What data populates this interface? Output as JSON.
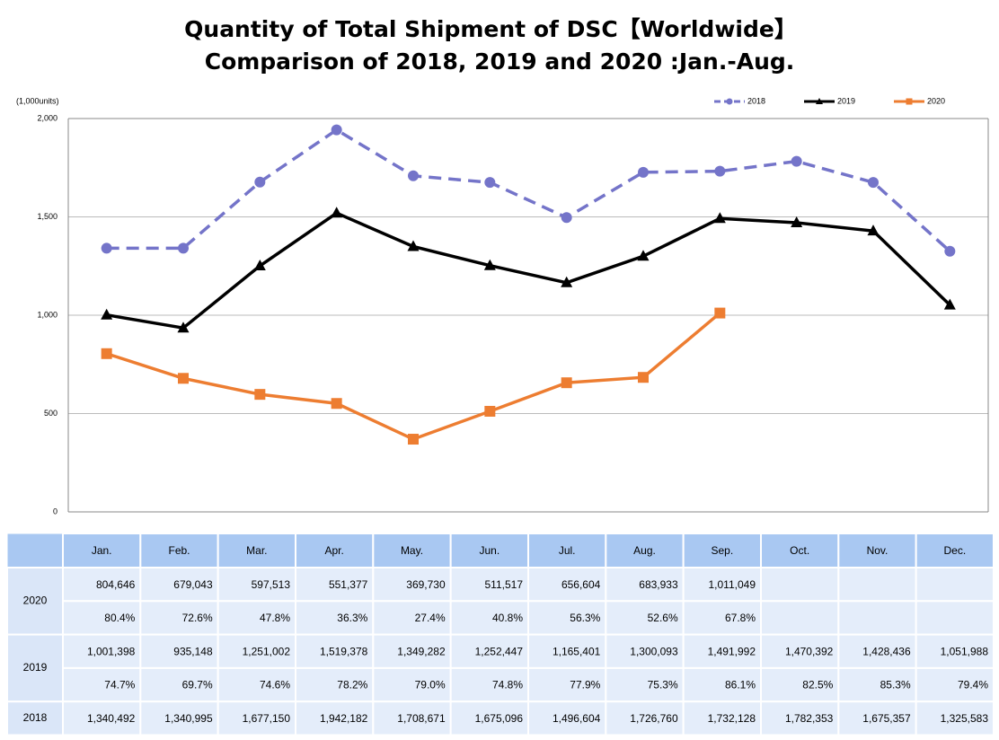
{
  "chart_data": {
    "type": "line",
    "title": "Quantity of Total Shipment of DSC【Worldwide】",
    "subtitle": "Comparison of 2018, 2019 and 2020 :Jan.-Aug.",
    "y_label": "(1,000units)",
    "categories": [
      "Jan.",
      "Feb.",
      "Mar.",
      "Apr.",
      "May.",
      "Jun.",
      "Jul.",
      "Aug.",
      "Sep.",
      "Oct.",
      "Nov.",
      "Dec."
    ],
    "ylim": [
      0,
      2000
    ],
    "yticks": [
      0,
      500,
      {
        "value": 1000,
        "label": "1,000"
      },
      {
        "value": 1500,
        "label": "1,500"
      },
      {
        "value": 2000,
        "label": "2,000"
      }
    ],
    "grid": true,
    "legend": "top-right",
    "series": [
      {
        "name": "2018",
        "color": "#7474c9",
        "dash": true,
        "marker": "circle",
        "values": [
          1340.492,
          1340.995,
          1677.15,
          1942.182,
          1708.671,
          1675.096,
          1496.604,
          1726.76,
          1732.128,
          1782.353,
          1675.357,
          1325.583
        ],
        "value_labels": [
          "1,340,492",
          "1,340,995",
          "1,677,150",
          "1,942,182",
          "1,708,671",
          "1,675,096",
          "1,496,604",
          "1,726,760",
          "1,732,128",
          "1,782,353",
          "1,675,357",
          "1,325,583"
        ]
      },
      {
        "name": "2019",
        "color": "#000000",
        "dash": false,
        "marker": "triangle",
        "values": [
          1001.398,
          935.148,
          1251.002,
          1519.378,
          1349.282,
          1252.447,
          1165.401,
          1300.093,
          1491.992,
          1470.392,
          1428.436,
          1051.988
        ],
        "value_labels": [
          "1,001,398",
          "935,148",
          "1,251,002",
          "1,519,378",
          "1,349,282",
          "1,252,447",
          "1,165,401",
          "1,300,093",
          "1,491,992",
          "1,470,392",
          "1,428,436",
          "1,051,988"
        ],
        "ratio": [
          74.7,
          69.7,
          74.6,
          78.2,
          79.0,
          74.8,
          77.9,
          75.3,
          86.1,
          82.5,
          85.3,
          79.4
        ],
        "ratio_labels": [
          "74.7%",
          "69.7%",
          "74.6%",
          "78.2%",
          "79.0%",
          "74.8%",
          "77.9%",
          "75.3%",
          "86.1%",
          "82.5%",
          "85.3%",
          "79.4%"
        ]
      },
      {
        "name": "2020",
        "color": "#ed7d31",
        "dash": false,
        "marker": "square",
        "values": [
          804.646,
          679.043,
          597.513,
          551.377,
          369.73,
          511.517,
          656.604,
          683.933,
          1011.049,
          null,
          null,
          null
        ],
        "value_labels": [
          "804,646",
          "679,043",
          "597,513",
          "551,377",
          "369,730",
          "511,517",
          "656,604",
          "683,933",
          "1,011,049",
          null,
          null,
          null
        ],
        "ratio": [
          80.4,
          72.6,
          47.8,
          36.3,
          27.4,
          40.8,
          56.3,
          52.6,
          67.8,
          null,
          null,
          null
        ],
        "ratio_labels": [
          "80.4%",
          "72.6%",
          "47.8%",
          "36.3%",
          "27.4%",
          "40.8%",
          "56.3%",
          "52.6%",
          "67.8%",
          null,
          null,
          null
        ]
      }
    ]
  }
}
